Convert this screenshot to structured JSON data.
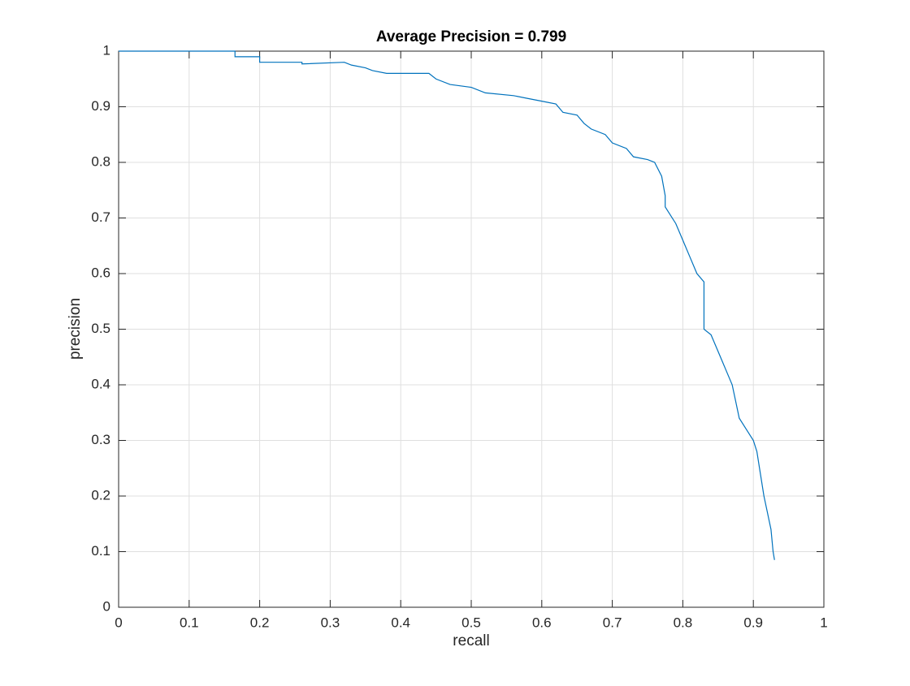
{
  "chart_data": {
    "type": "line",
    "title": "Average Precision = 0.799",
    "x_label": "recall",
    "y_label": "precision",
    "x": [
      0,
      0.165,
      0.165,
      0.2,
      0.2,
      0.26,
      0.26,
      0.32,
      0.33,
      0.35,
      0.36,
      0.38,
      0.44,
      0.45,
      0.47,
      0.5,
      0.52,
      0.56,
      0.58,
      0.6,
      0.62,
      0.63,
      0.65,
      0.66,
      0.67,
      0.69,
      0.7,
      0.72,
      0.73,
      0.75,
      0.76,
      0.77,
      0.775,
      0.775,
      0.78,
      0.79,
      0.8,
      0.81,
      0.82,
      0.83,
      0.83,
      0.84,
      0.85,
      0.86,
      0.87,
      0.875,
      0.88,
      0.89,
      0.9,
      0.905,
      0.91,
      0.915,
      0.92,
      0.925,
      0.928,
      0.93
    ],
    "series": [
      {
        "name": "precision",
        "color": "#0072bd",
        "values": [
          1,
          1,
          0.99,
          0.99,
          0.98,
          0.98,
          0.977,
          0.98,
          0.975,
          0.97,
          0.965,
          0.96,
          0.96,
          0.95,
          0.94,
          0.935,
          0.925,
          0.92,
          0.915,
          0.91,
          0.905,
          0.89,
          0.885,
          0.87,
          0.86,
          0.85,
          0.835,
          0.825,
          0.81,
          0.805,
          0.8,
          0.775,
          0.74,
          0.72,
          0.71,
          0.69,
          0.66,
          0.63,
          0.6,
          0.585,
          0.5,
          0.49,
          0.46,
          0.43,
          0.4,
          0.37,
          0.34,
          0.32,
          0.3,
          0.28,
          0.24,
          0.2,
          0.17,
          0.14,
          0.1,
          0.085
        ]
      }
    ],
    "xlim": [
      0,
      1
    ],
    "xticks": [
      0,
      0.1,
      0.2,
      0.3,
      0.4,
      0.5,
      0.6,
      0.7,
      0.8,
      0.9,
      1
    ],
    "ylim": [
      0,
      1
    ],
    "yticks": [
      0,
      0.1,
      0.2,
      0.3,
      0.4,
      0.5,
      0.6,
      0.7,
      0.8,
      0.9,
      1
    ],
    "grid": true
  }
}
